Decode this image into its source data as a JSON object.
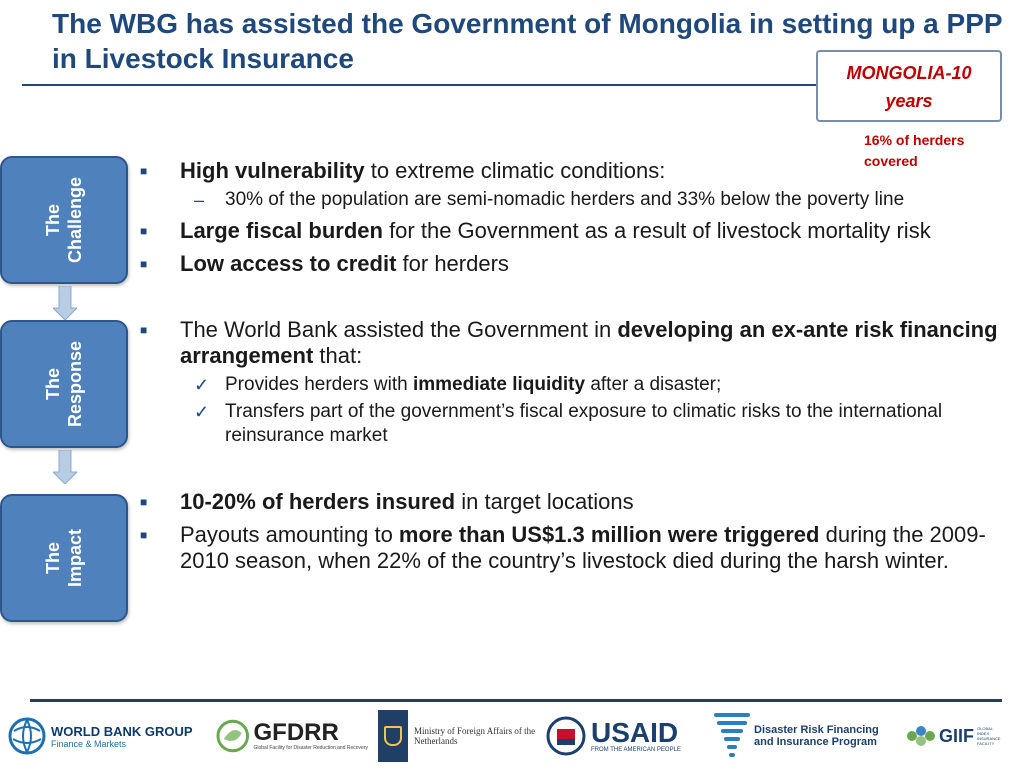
{
  "title": "The WBG has assisted the Government of Mongolia in setting up a PPP in Livestock Insurance",
  "country_box": {
    "line1": "MONGOLIA-10",
    "line2": "years"
  },
  "herders_note": "16% of herders covered",
  "stages": [
    {
      "line1": "The",
      "line2": "Challenge"
    },
    {
      "line1": "The",
      "line2": "Response"
    },
    {
      "line1": "The",
      "line2": "Impact"
    }
  ],
  "challenge": {
    "b1": {
      "bold": "High vulnerability",
      "rest": " to extreme climatic conditions:"
    },
    "b1_sub": "30% of the population are semi-nomadic herders and 33% below the poverty line",
    "b2": {
      "bold": "Large fiscal burden",
      "rest": " for the Government as a result of livestock mortality risk"
    },
    "b3": {
      "bold": "Low access to credit",
      "rest": " for herders"
    }
  },
  "response": {
    "intro": "The World Bank assisted the Government in ",
    "intro_bold": "developing an ex-ante risk financing arrangement",
    "intro_end": " that:",
    "sub1": {
      "pre": "Provides herders with ",
      "bold": "immediate liquidity",
      "post": " after a disaster;"
    },
    "sub2": "Transfers part of the government’s fiscal exposure to climatic risks to the international reinsurance market"
  },
  "impact": {
    "b1": {
      "bold": "10-20% of herders insured",
      "rest": " in target locations"
    },
    "b2": {
      "pre": "Payouts amounting to ",
      "bold": "more than US$1.3 million were triggered",
      "post": " during the 2009-2010 season, when 22% of the country’s livestock died during the harsh winter."
    }
  },
  "footer_logos": {
    "wbg_main": "WORLD BANK GROUP",
    "wbg_sub": "Finance & Markets",
    "gfdrr_main": "GFDRR",
    "gfdrr_sub": "Global Facility for Disaster Reduction and Recovery",
    "mofa_line1": "Ministry of Foreign Affairs of the",
    "mofa_line2": "Netherlands",
    "usaid_main": "USAID",
    "usaid_sub": "FROM THE AMERICAN PEOPLE",
    "drfip_line1": "Disaster Risk Financing",
    "drfip_line2": "and Insurance Program",
    "giif_main": "GIIF",
    "giif_sub": "GLOBAL INDEX INSURANCE FACILITY"
  },
  "colors": {
    "title": "#1f497d",
    "accent_red": "#c00000",
    "stage_fill": "#4f81bd",
    "arrow_fill": "#b8cce4"
  }
}
